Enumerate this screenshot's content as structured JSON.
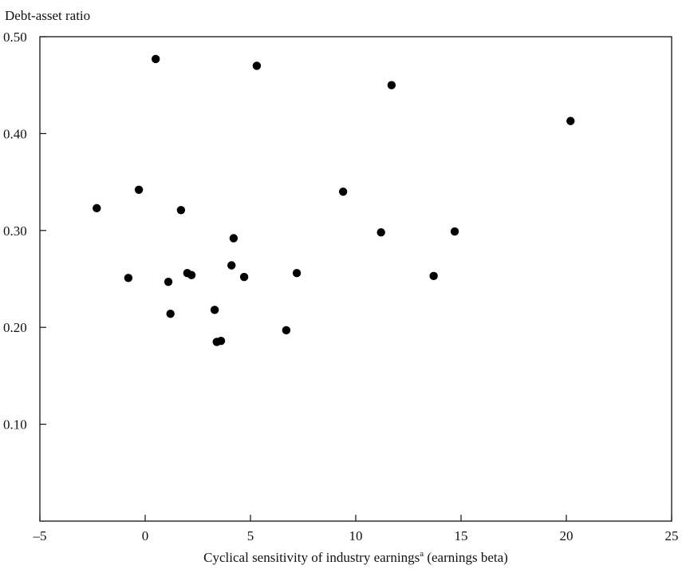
{
  "chart_data": {
    "type": "scatter",
    "ylabel": "Debt-asset ratio",
    "xlabel_main": "Cyclical sensitivity of industry earnings",
    "xlabel_sup": "a",
    "xlabel_tail": " (earnings beta)",
    "xlim": [
      -5,
      25
    ],
    "ylim": [
      0.0,
      0.5
    ],
    "xticks": [
      -5,
      0,
      5,
      10,
      15,
      20,
      25
    ],
    "xtick_labels": [
      "–5",
      "0",
      "5",
      "10",
      "15",
      "20",
      "25"
    ],
    "yticks": [
      0.1,
      0.2,
      0.3,
      0.4,
      0.5
    ],
    "ytick_labels": [
      "0.10",
      "0.20",
      "0.30",
      "0.40",
      "0.50"
    ],
    "grid": false,
    "points": [
      {
        "x": 0.5,
        "y": 0.477
      },
      {
        "x": 5.3,
        "y": 0.47
      },
      {
        "x": 11.7,
        "y": 0.45
      },
      {
        "x": 20.2,
        "y": 0.413
      },
      {
        "x": -0.3,
        "y": 0.342
      },
      {
        "x": 9.4,
        "y": 0.34
      },
      {
        "x": -2.3,
        "y": 0.323
      },
      {
        "x": 1.7,
        "y": 0.321
      },
      {
        "x": 11.2,
        "y": 0.298
      },
      {
        "x": 14.7,
        "y": 0.299
      },
      {
        "x": 4.2,
        "y": 0.292
      },
      {
        "x": 4.1,
        "y": 0.264
      },
      {
        "x": 2.0,
        "y": 0.256
      },
      {
        "x": 2.2,
        "y": 0.254
      },
      {
        "x": 7.2,
        "y": 0.256
      },
      {
        "x": 13.7,
        "y": 0.253
      },
      {
        "x": 4.7,
        "y": 0.252
      },
      {
        "x": -0.8,
        "y": 0.251
      },
      {
        "x": 1.1,
        "y": 0.247
      },
      {
        "x": 3.3,
        "y": 0.218
      },
      {
        "x": 1.2,
        "y": 0.214
      },
      {
        "x": 6.7,
        "y": 0.197
      },
      {
        "x": 3.6,
        "y": 0.186
      },
      {
        "x": 3.4,
        "y": 0.185
      }
    ]
  }
}
